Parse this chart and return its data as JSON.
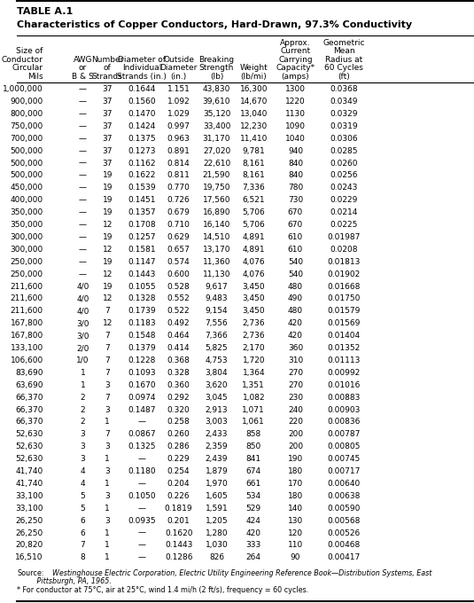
{
  "title1": "TABLE A.1",
  "title2": "Characteristics of Copper Conductors, Hard-Drawn, 97.3% Conductivity",
  "col_headers": [
    [
      "Size of",
      "Conductor",
      "Circular",
      "Mils"
    ],
    [
      "AWG",
      "or",
      "B & S"
    ],
    [
      "Number",
      "of",
      "Strands"
    ],
    [
      "Diameter of",
      "Individual",
      "Strands (in.)"
    ],
    [
      "Outside",
      "Diameter",
      "(in.)"
    ],
    [
      "Breaking",
      "Strength",
      "(lb)"
    ],
    [
      "Weight",
      "(lb/mi)"
    ],
    [
      "Approx.",
      "Current",
      "Carrying",
      "Capacity*",
      "(amps)"
    ],
    [
      "Geometric",
      "Mean",
      "Radius at",
      "60 Cycles",
      "(ft)"
    ]
  ],
  "rows": [
    [
      "1,000,000",
      "—",
      "37",
      "0.1644",
      "1.151",
      "43,830",
      "16,300",
      "1300",
      "0.0368"
    ],
    [
      "900,000",
      "—",
      "37",
      "0.1560",
      "1.092",
      "39,610",
      "14,670",
      "1220",
      "0.0349"
    ],
    [
      "800,000",
      "—",
      "37",
      "0.1470",
      "1.029",
      "35,120",
      "13,040",
      "1130",
      "0.0329"
    ],
    [
      "750,000",
      "—",
      "37",
      "0.1424",
      "0.997",
      "33,400",
      "12,230",
      "1090",
      "0.0319"
    ],
    [
      "700,000",
      "—",
      "37",
      "0.1375",
      "0.963",
      "31,170",
      "11,410",
      "1040",
      "0.0306"
    ],
    [
      "500,000",
      "—",
      "37",
      "0.1273",
      "0.891",
      "27,020",
      "9,781",
      "940",
      "0.0285"
    ],
    [
      "500,000",
      "—",
      "37",
      "0.1162",
      "0.814",
      "22,610",
      "8,161",
      "840",
      "0.0260"
    ],
    [
      "500,000",
      "—",
      "19",
      "0.1622",
      "0.811",
      "21,590",
      "8,161",
      "840",
      "0.0256"
    ],
    [
      "450,000",
      "—",
      "19",
      "0.1539",
      "0.770",
      "19,750",
      "7,336",
      "780",
      "0.0243"
    ],
    [
      "400,000",
      "—",
      "19",
      "0.1451",
      "0.726",
      "17,560",
      "6,521",
      "730",
      "0.0229"
    ],
    [
      "350,000",
      "—",
      "19",
      "0.1357",
      "0.679",
      "16,890",
      "5,706",
      "670",
      "0.0214"
    ],
    [
      "350,000",
      "—",
      "12",
      "0.1708",
      "0.710",
      "16,140",
      "5,706",
      "670",
      "0.0225"
    ],
    [
      "300,000",
      "—",
      "19",
      "0.1257",
      "0.629",
      "14,510",
      "4,891",
      "610",
      "0.01987"
    ],
    [
      "300,000",
      "—",
      "12",
      "0.1581",
      "0.657",
      "13,170",
      "4,891",
      "610",
      "0.0208"
    ],
    [
      "250,000",
      "—",
      "19",
      "0.1147",
      "0.574",
      "11,360",
      "4,076",
      "540",
      "0.01813"
    ],
    [
      "250,000",
      "—",
      "12",
      "0.1443",
      "0.600",
      "11,130",
      "4,076",
      "540",
      "0.01902"
    ],
    [
      "211,600",
      "4/0",
      "19",
      "0.1055",
      "0.528",
      "9,617",
      "3,450",
      "480",
      "0.01668"
    ],
    [
      "211,600",
      "4/0",
      "12",
      "0.1328",
      "0.552",
      "9,483",
      "3,450",
      "490",
      "0.01750"
    ],
    [
      "211,600",
      "4/0",
      "7",
      "0.1739",
      "0.522",
      "9,154",
      "3,450",
      "480",
      "0.01579"
    ],
    [
      "167,800",
      "3/0",
      "12",
      "0.1183",
      "0.492",
      "7,556",
      "2,736",
      "420",
      "0.01569"
    ],
    [
      "167,800",
      "3/0",
      "7",
      "0.1548",
      "0.464",
      "7,366",
      "2,736",
      "420",
      "0.01404"
    ],
    [
      "133,100",
      "2/0",
      "7",
      "0.1379",
      "0.414",
      "5,825",
      "2,170",
      "360",
      "0.01352"
    ],
    [
      "106,600",
      "1/0",
      "7",
      "0.1228",
      "0.368",
      "4,753",
      "1,720",
      "310",
      "0.01113"
    ],
    [
      "83,690",
      "1",
      "7",
      "0.1093",
      "0.328",
      "3,804",
      "1,364",
      "270",
      "0.00992"
    ],
    [
      "63,690",
      "1",
      "3",
      "0.1670",
      "0.360",
      "3,620",
      "1,351",
      "270",
      "0.01016"
    ],
    [
      "66,370",
      "2",
      "7",
      "0.0974",
      "0.292",
      "3,045",
      "1,082",
      "230",
      "0.00883"
    ],
    [
      "66,370",
      "2",
      "3",
      "0.1487",
      "0.320",
      "2,913",
      "1,071",
      "240",
      "0.00903"
    ],
    [
      "66,370",
      "2",
      "1",
      "—",
      "0.258",
      "3,003",
      "1,061",
      "220",
      "0.00836"
    ],
    [
      "52,630",
      "3",
      "7",
      "0.0867",
      "0.260",
      "2,433",
      "858",
      "200",
      "0.00787"
    ],
    [
      "52,630",
      "3",
      "3",
      "0.1325",
      "0.286",
      "2,359",
      "850",
      "200",
      "0.00805"
    ],
    [
      "52,630",
      "3",
      "1",
      "—",
      "0.229",
      "2,439",
      "841",
      "190",
      "0.00745"
    ],
    [
      "41,740",
      "4",
      "3",
      "0.1180",
      "0.254",
      "1,879",
      "674",
      "180",
      "0.00717"
    ],
    [
      "41,740",
      "4",
      "1",
      "—",
      "0.204",
      "1,970",
      "661",
      "170",
      "0.00640"
    ],
    [
      "33,100",
      "5",
      "3",
      "0.1050",
      "0.226",
      "1,605",
      "534",
      "180",
      "0.00638"
    ],
    [
      "33,100",
      "5",
      "1",
      "—",
      "0.1819",
      "1,591",
      "529",
      "140",
      "0.00590"
    ],
    [
      "26,250",
      "6",
      "3",
      "0.0935",
      "0.201",
      "1,205",
      "424",
      "130",
      "0.00568"
    ],
    [
      "26,250",
      "6",
      "1",
      "—",
      "0.1620",
      "1,280",
      "420",
      "120",
      "0.00526"
    ],
    [
      "20,820",
      "7",
      "1",
      "—",
      "0.1443",
      "1,030",
      "333",
      "110",
      "0.00468"
    ],
    [
      "16,510",
      "8",
      "1",
      "—",
      "0.1286",
      "826",
      "264",
      "90",
      "0.00417"
    ]
  ],
  "footnote_source_label": "Source:",
  "footnote_source_text": "  Westinghouse Electric Corporation, ",
  "footnote_source_italic": "Electric Utility Engineering Reference Book—Distribution Systems",
  "footnote_source_end": ", East",
  "footnote_source_line2": "         Pittsburgh, PA, 1965.",
  "footnote2": "* For conductor at 75°C, air at 25°C, wind 1.4 mi/h (2 ft/s), frequency = 60 cycles.",
  "bg_color": "#ffffff",
  "text_color": "#000000",
  "font_size": 6.5,
  "header_font_size": 6.5
}
